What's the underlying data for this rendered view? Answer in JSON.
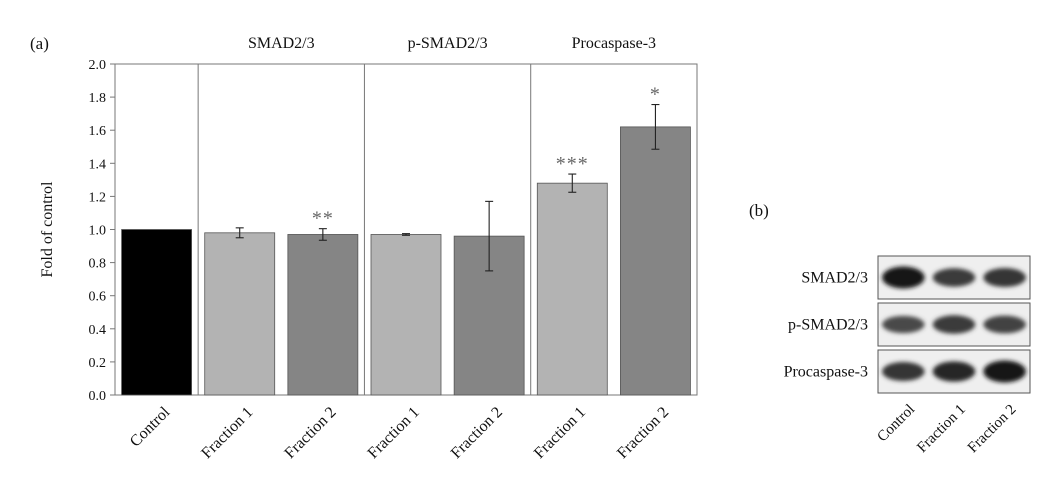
{
  "chart_data": [
    {
      "type": "bar",
      "panel_label": "(a)",
      "ylabel": "Fold of control",
      "ylim": [
        0,
        2.0
      ],
      "yticks": [
        "0.0",
        "0.2",
        "0.4",
        "0.6",
        "0.8",
        "1.0",
        "1.2",
        "1.4",
        "1.6",
        "1.8",
        "2.0"
      ],
      "grid": false,
      "groups": [
        "",
        "SMAD2/3",
        "p-SMAD2/3",
        "Procaspase-3"
      ],
      "bars": [
        {
          "category": "Control",
          "group": 0,
          "value": 1.0,
          "error": 0,
          "sig": "",
          "color": "#000000"
        },
        {
          "category": "Fraction 1",
          "group": 1,
          "value": 0.98,
          "error": 0.03,
          "sig": "",
          "color": "#b3b3b3"
        },
        {
          "category": "Fraction 2",
          "group": 1,
          "value": 0.97,
          "error": 0.035,
          "sig": "**",
          "color": "#858585"
        },
        {
          "category": "Fraction 1",
          "group": 2,
          "value": 0.97,
          "error": 0.005,
          "sig": "",
          "color": "#b3b3b3"
        },
        {
          "category": "Fraction 2",
          "group": 2,
          "value": 0.96,
          "error": 0.21,
          "sig": "",
          "color": "#858585"
        },
        {
          "category": "Fraction 1",
          "group": 3,
          "value": 1.28,
          "error": 0.055,
          "sig": "***",
          "color": "#b3b3b3"
        },
        {
          "category": "Fraction 2",
          "group": 3,
          "value": 1.62,
          "error": 0.135,
          "sig": "*",
          "color": "#858585"
        }
      ]
    },
    {
      "type": "blot",
      "panel_label": "(b)",
      "rows": [
        "SMAD2/3",
        "p-SMAD2/3",
        "Procaspase-3"
      ],
      "lanes": [
        "Control",
        "Fraction 1",
        "Fraction 2"
      ],
      "intensity": [
        [
          1.0,
          0.7,
          0.75
        ],
        [
          0.6,
          0.7,
          0.65
        ],
        [
          0.75,
          0.85,
          1.0
        ]
      ]
    }
  ]
}
